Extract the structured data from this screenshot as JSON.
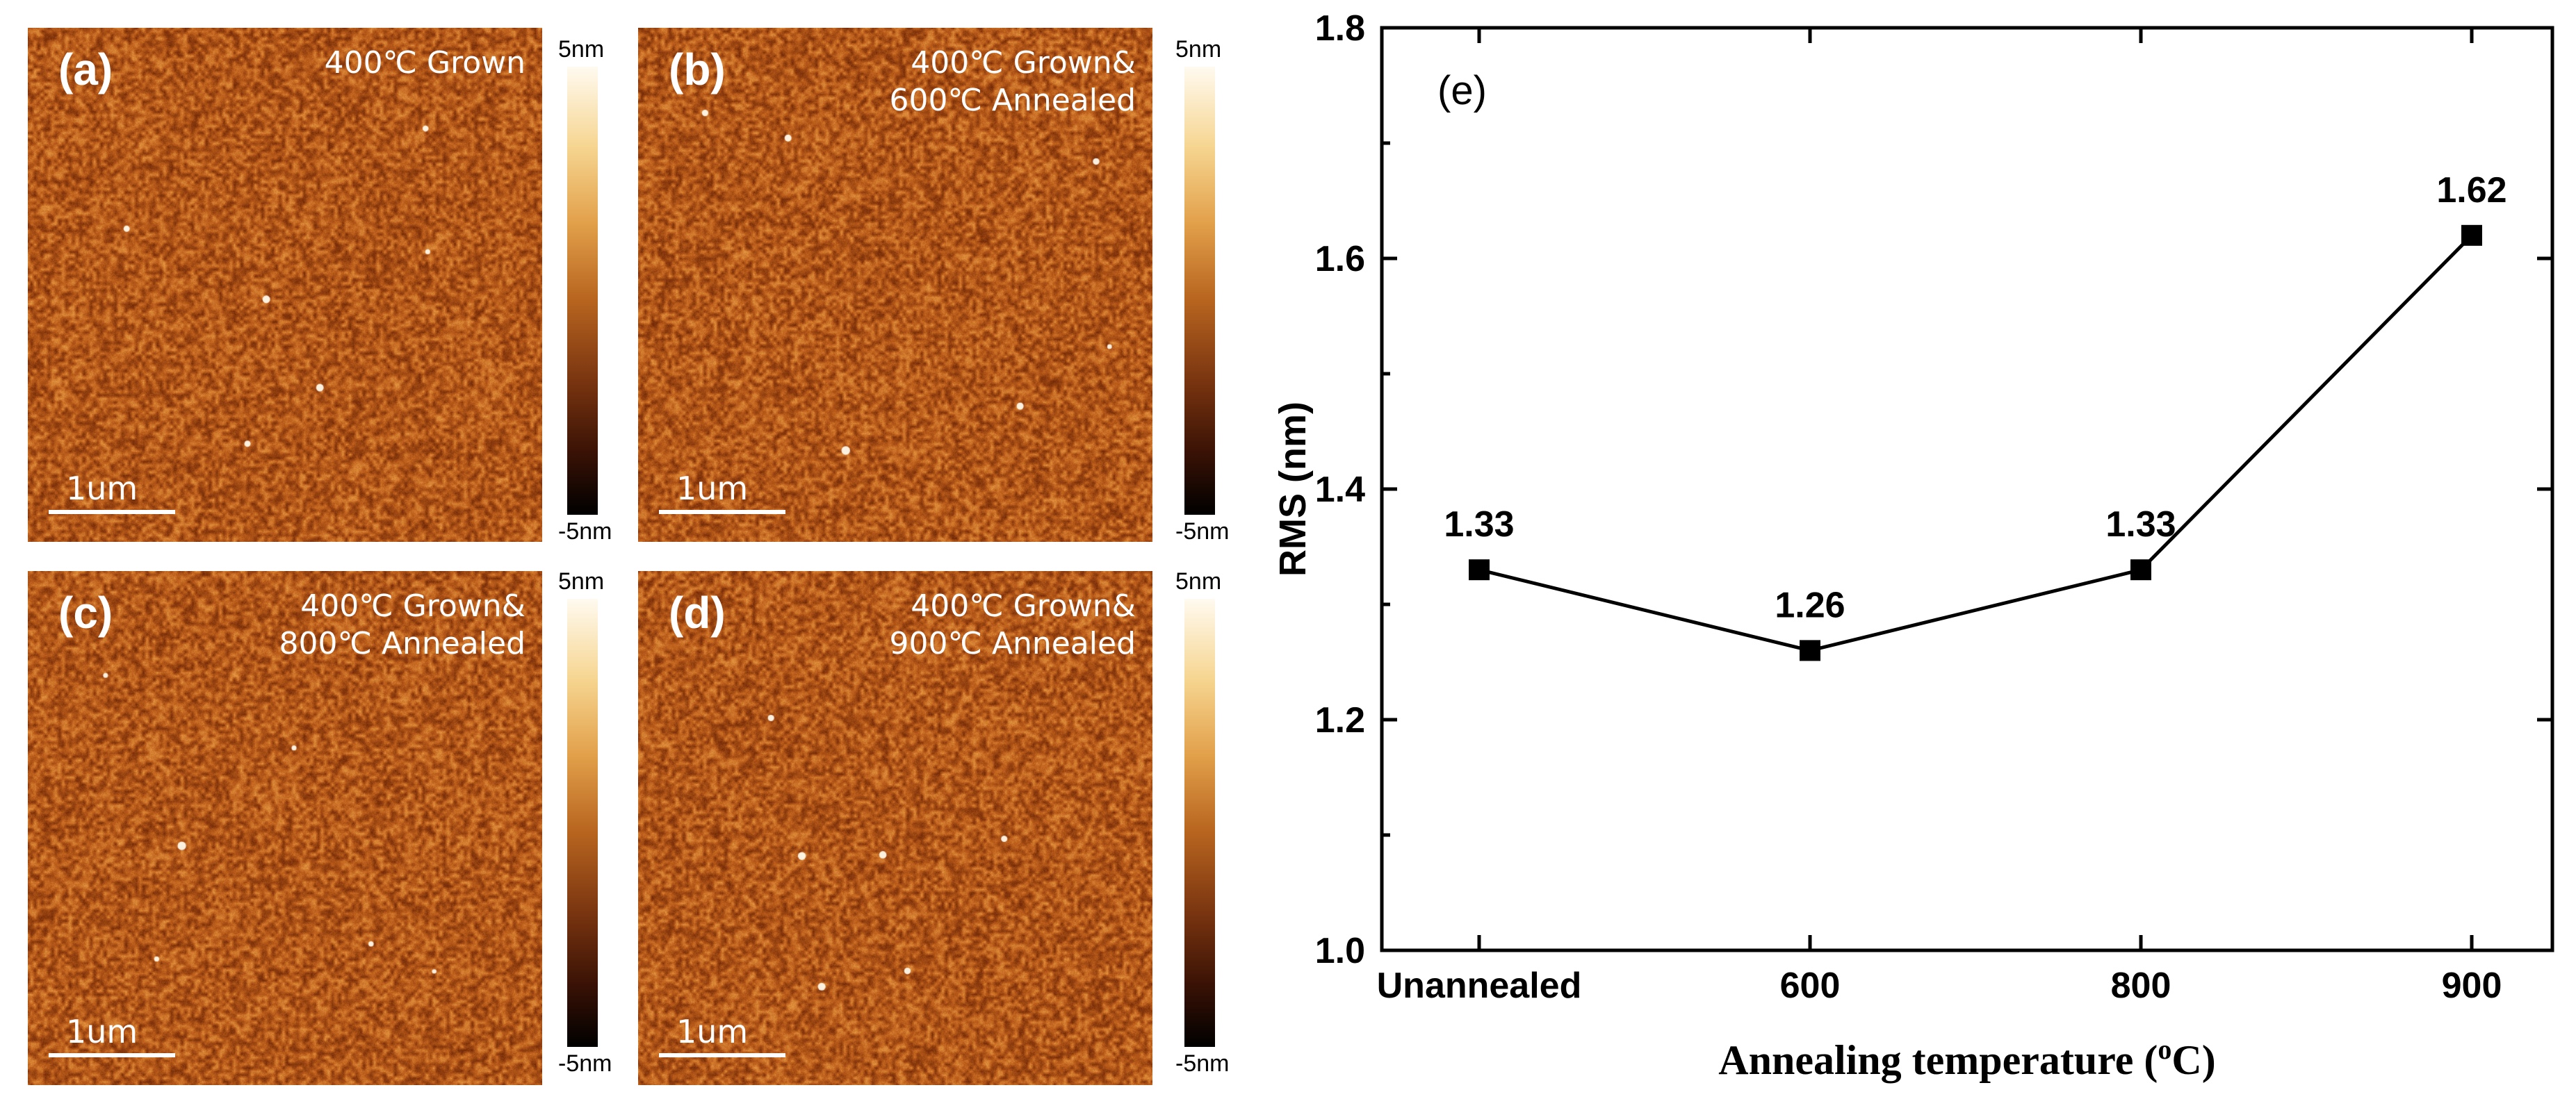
{
  "afm_panels": [
    {
      "label": "(a)",
      "caption_lines": [
        "400℃ Grown"
      ],
      "scale_bar": "1um",
      "colorbar_max": "5nm",
      "colorbar_min": "-5nm"
    },
    {
      "label": "(b)",
      "caption_lines": [
        "400℃ Grown&",
        "600℃ Annealed"
      ],
      "scale_bar": "1um",
      "colorbar_max": "5nm",
      "colorbar_min": "-5nm"
    },
    {
      "label": "(c)",
      "caption_lines": [
        "400℃ Grown&",
        "800℃ Annealed"
      ],
      "scale_bar": "1um",
      "colorbar_max": "5nm",
      "colorbar_min": "-5nm"
    },
    {
      "label": "(d)",
      "caption_lines": [
        "400℃ Grown&",
        "900℃ Annealed"
      ],
      "scale_bar": "1um",
      "colorbar_max": "5nm",
      "colorbar_min": "-5nm"
    }
  ],
  "chart_data": {
    "type": "line",
    "panel_label": "(e)",
    "categories": [
      "Unannealed",
      "600",
      "800",
      "900"
    ],
    "series": [
      {
        "name": "RMS",
        "values": [
          1.33,
          1.26,
          1.33,
          1.62
        ],
        "marker": "square",
        "color": "#000000"
      }
    ],
    "data_labels": [
      "1.33",
      "1.26",
      "1.33",
      "1.62"
    ],
    "xlabel_main": "Annealing temperature (",
    "xlabel_sup": "o",
    "xlabel_end": "C)",
    "ylabel": "RMS (nm)",
    "ylim": [
      1.0,
      1.8
    ],
    "yticks": [
      1.0,
      1.2,
      1.4,
      1.6,
      1.8
    ],
    "ytick_labels": [
      "1.0",
      "1.2",
      "1.4",
      "1.6",
      "1.8"
    ],
    "grid": false,
    "legend": "none"
  }
}
